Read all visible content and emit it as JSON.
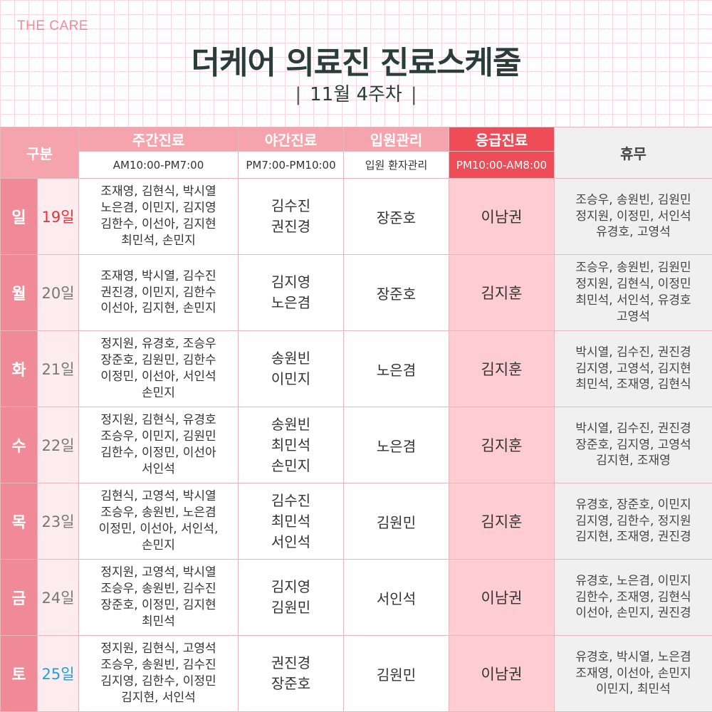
{
  "brand": "THE CARE",
  "title": "더케어 의료진 진료스케줄",
  "week": "11월 4주차",
  "headers": {
    "category": "구분",
    "day": "주간진료",
    "night": "야간진료",
    "inpatient": "입원관리",
    "emergency": "응급진료",
    "off": "휴무"
  },
  "subheaders": {
    "day": "AM10:00-PM7:00",
    "night": "PM7:00-PM10:00",
    "inpatient": "입원 환자관리",
    "emergency": "PM10:00-AM8:00"
  },
  "colors": {
    "accent_pink": "#f08a96",
    "header_pink": "#f5a3ac",
    "emergency_red": "#ee4d58",
    "emergency_bg": "#fdcdd1",
    "off_bg": "#f0f0f0",
    "sunday_red": "#e8313b",
    "saturday_blue": "#1ea0d8",
    "title_dark": "#2b3d3a"
  },
  "rows": [
    {
      "dow": "일",
      "date": "19일",
      "date_color": "red",
      "day": [
        "조재영, 김현식, 박시열",
        "노은겸, 이민지, 김지영",
        "김한수, 이선아, 김지현",
        "최민석, 손민지"
      ],
      "night": [
        "김수진",
        "권진경"
      ],
      "inpatient": "장준호",
      "emergency": "이남권",
      "off": [
        "조승우, 송원빈, 김원민",
        "정지원, 이정민, 서인석",
        "유경호, 고영석"
      ]
    },
    {
      "dow": "월",
      "date": "20일",
      "date_color": "gray",
      "day": [
        "조재영, 박시열, 김수진",
        "권진경, 이민지, 김한수",
        "이선아, 김지현, 손민지"
      ],
      "night": [
        "김지영",
        "노은겸"
      ],
      "inpatient": "장준호",
      "emergency": "김지훈",
      "off": [
        "조승우, 송원빈, 김원민",
        "정지원, 김현식, 이정민",
        "최민석, 서인석, 유경호",
        "고영석"
      ]
    },
    {
      "dow": "화",
      "date": "21일",
      "date_color": "gray",
      "day": [
        "정지원, 유경호, 조승우",
        "장준호, 김원민, 김한수",
        "이정민, 이선아, 서인석",
        "손민지"
      ],
      "night": [
        "송원빈",
        "이민지"
      ],
      "inpatient": "노은겸",
      "emergency": "김지훈",
      "off": [
        "박시열, 김수진, 권진경",
        "김지영, 고영석, 김지현",
        "최민석, 조재영, 김현식"
      ]
    },
    {
      "dow": "수",
      "date": "22일",
      "date_color": "gray",
      "day": [
        "정지원, 김현식, 유경호",
        "조승우, 이민지, 김원민",
        "김한수, 이정민, 이선아",
        "서인석"
      ],
      "night": [
        "송원빈",
        "최민석",
        "손민지"
      ],
      "inpatient": "노은겸",
      "emergency": "김지훈",
      "off": [
        "박시열, 김수진, 권진경",
        "장준호, 김지영, 고영석",
        "김지현, 조재영"
      ]
    },
    {
      "dow": "목",
      "date": "23일",
      "date_color": "gray",
      "day": [
        "김현식, 고영석, 박시열",
        "조승우, 송원빈, 노은겸",
        "이정민, 이선아, 서인석,",
        "손민지"
      ],
      "night": [
        "김수진",
        "최민석",
        "서인석"
      ],
      "inpatient": "김원민",
      "emergency": "김지훈",
      "off": [
        "유경호, 장준호, 이민지",
        "김지영, 김한수, 정지원",
        "김지현, 조재영, 권진경"
      ]
    },
    {
      "dow": "금",
      "date": "24일",
      "date_color": "gray",
      "day": [
        "정지원, 고영석, 박시열",
        "조승우, 송원빈, 김수진",
        "장준호, 이정민, 김지현",
        "최민석"
      ],
      "night": [
        "김지영",
        "김원민"
      ],
      "inpatient": "서인석",
      "emergency": "이남권",
      "off": [
        "유경호, 노은겸, 이민지",
        "김한수, 조재영, 김현식",
        "이선아, 손민지, 권진경"
      ]
    },
    {
      "dow": "토",
      "date": "25일",
      "date_color": "blue",
      "day": [
        "정지원, 김현식, 고영석",
        "조승우, 송원빈, 김수진",
        "김지영, 김한수, 이정민",
        "김지현, 서인석"
      ],
      "night": [
        "권진경",
        "장준호"
      ],
      "inpatient": "김원민",
      "emergency": "이남권",
      "off": [
        "유경호, 박시열, 노은겸",
        "조재영, 이선아, 손민지",
        "이민지, 최민석"
      ]
    }
  ]
}
